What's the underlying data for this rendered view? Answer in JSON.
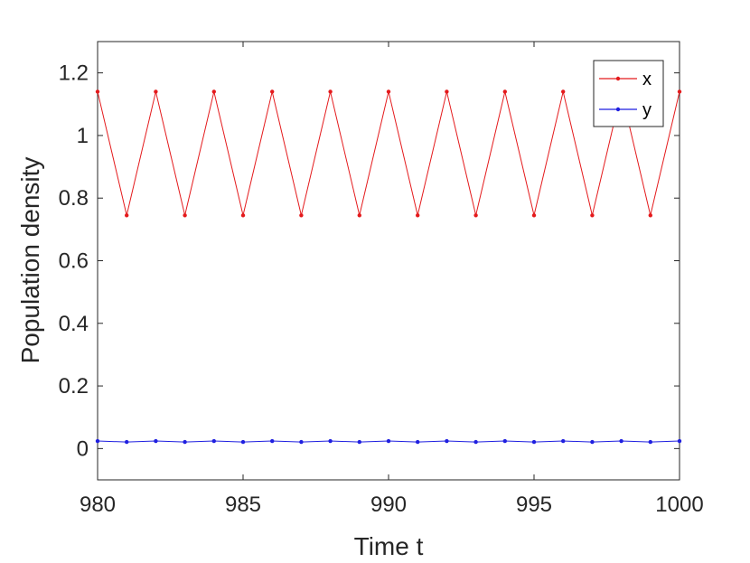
{
  "chart_data": {
    "type": "line",
    "title": "",
    "xlabel": "Time t",
    "ylabel": "Population density",
    "xlim": [
      980,
      1000
    ],
    "ylim": [
      -0.1,
      1.3
    ],
    "xticks": [
      980,
      985,
      990,
      995,
      1000
    ],
    "xtick_labels": [
      "980",
      "985",
      "990",
      "995",
      "1000"
    ],
    "yticks": [
      0,
      0.2,
      0.4,
      0.6,
      0.8,
      1,
      1.2
    ],
    "ytick_labels": [
      "0",
      "0.2",
      "0.4",
      "0.6",
      "0.8",
      "1",
      "1.2"
    ],
    "grid": false,
    "legend_position": "top-right",
    "x": [
      980,
      981,
      982,
      983,
      984,
      985,
      986,
      987,
      988,
      989,
      990,
      991,
      992,
      993,
      994,
      995,
      996,
      997,
      998,
      999,
      1000
    ],
    "series": [
      {
        "name": "x",
        "color": "#e41a1c",
        "values": [
          1.14,
          0.745,
          1.14,
          0.745,
          1.14,
          0.745,
          1.14,
          0.745,
          1.14,
          0.745,
          1.14,
          0.745,
          1.14,
          0.745,
          1.14,
          0.745,
          1.14,
          0.745,
          1.14,
          0.745,
          1.14
        ]
      },
      {
        "name": "y",
        "color": "#1f1fe0",
        "values": [
          0.024,
          0.021,
          0.024,
          0.021,
          0.024,
          0.021,
          0.024,
          0.021,
          0.024,
          0.021,
          0.024,
          0.021,
          0.024,
          0.021,
          0.024,
          0.021,
          0.024,
          0.021,
          0.024,
          0.021,
          0.024
        ]
      }
    ]
  }
}
